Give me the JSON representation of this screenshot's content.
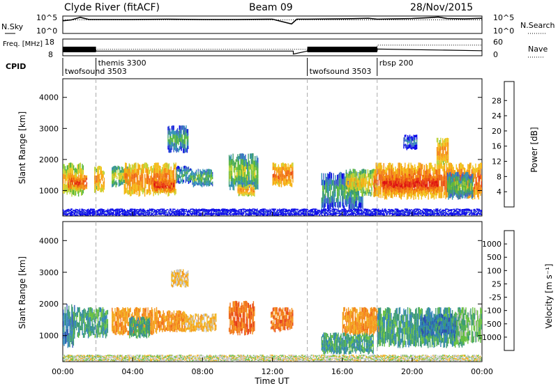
{
  "header": {
    "station": "Clyde River (fitACF)",
    "beam": "Beam 09",
    "date": "28/Nov/2015"
  },
  "chart_data": [
    {
      "type": "line",
      "panel": "noise",
      "left_label": "N.Sky",
      "right_label": "N.Search",
      "left_ticks": [
        "10^5",
        "10^0"
      ],
      "right_ticks": [
        "10^5",
        "10^0"
      ],
      "series": [
        {
          "name": "N.Sky",
          "style": "solid",
          "x": [
            0,
            0.5,
            1,
            1.5,
            2,
            4,
            6,
            8,
            10,
            12,
            13.1,
            13.4,
            14,
            16,
            17.5,
            18,
            19,
            20,
            21,
            21.5,
            22,
            23,
            24
          ],
          "y": [
            4,
            4.3,
            5.1,
            4.4,
            4.4,
            4.4,
            4.5,
            4.4,
            4.4,
            4.5,
            3,
            4.5,
            4.5,
            4.6,
            4.8,
            4.5,
            4.6,
            4.7,
            5.0,
            5.2,
            4.7,
            4.6,
            4.8
          ]
        },
        {
          "name": "N.Search",
          "style": "dotted",
          "x": [
            0,
            6,
            12,
            18,
            24
          ],
          "y": [
            4.3,
            4.3,
            4.3,
            4.3,
            4.3
          ]
        }
      ],
      "xlim": [
        0,
        24
      ]
    },
    {
      "type": "line",
      "panel": "frequency",
      "left_label": "Freq. [MHz]",
      "right_label": "Nave",
      "left_ticks": [
        "18",
        "8"
      ],
      "right_ticks": [
        "60",
        "0"
      ],
      "series": [
        {
          "name": "Freq.",
          "style": "solid",
          "x": [
            0,
            1.9,
            1.9,
            13.2,
            13.2,
            14,
            14,
            18,
            18,
            24
          ],
          "y": [
            11,
            11,
            10.8,
            10.8,
            9,
            10.8,
            11,
            11,
            12,
            11
          ]
        },
        {
          "name": "Nave",
          "style": "dotted",
          "x": [
            0,
            1.9,
            1.9,
            18,
            18,
            24
          ],
          "y": [
            20,
            20,
            23,
            23,
            38,
            38
          ]
        }
      ],
      "ylim": [
        8,
        18
      ]
    },
    {
      "type": "table",
      "panel": "cpid",
      "label": "CPID",
      "segments": [
        {
          "name": "twofsound 3503",
          "start": 0,
          "end": 1.9
        },
        {
          "name": "themis 3300",
          "start": 1.9,
          "end": 14
        },
        {
          "name": "twofsound 3503",
          "start": 14,
          "end": 18
        },
        {
          "name": "rbsp 200",
          "start": 18,
          "end": 24
        }
      ]
    },
    {
      "type": "heatmap",
      "panel": "power",
      "ylabel": "Slant Range [km]",
      "y_ticks": [
        1000,
        2000,
        3000,
        4000
      ],
      "ylim": [
        180,
        4600
      ],
      "colorbar": {
        "label": "Power [dB]",
        "ticks": [
          4,
          8,
          12,
          16,
          20,
          24,
          28
        ],
        "range": [
          0,
          33
        ]
      },
      "palette": [
        "#0000e8",
        "#3b5cc8",
        "#2e8fb6",
        "#3a9a73",
        "#58b83a",
        "#b9d335",
        "#f0c41a",
        "#f7a80e",
        "#f48a12",
        "#ef6812",
        "#e83a14",
        "#dd1010"
      ],
      "blobs": [
        {
          "t0": 0.0,
          "t1": 1.2,
          "r0": 800,
          "r1": 1900,
          "level": 22
        },
        {
          "t0": 0.3,
          "t1": 1.4,
          "r0": 1000,
          "r1": 1500,
          "level": 30
        },
        {
          "t0": 1.8,
          "t1": 2.4,
          "r0": 900,
          "r1": 1800,
          "level": 24
        },
        {
          "t0": 2.8,
          "t1": 3.9,
          "r0": 1100,
          "r1": 1800,
          "level": 18
        },
        {
          "t0": 3.5,
          "t1": 6.5,
          "r0": 800,
          "r1": 1900,
          "level": 26
        },
        {
          "t0": 5.2,
          "t1": 6.4,
          "r0": 900,
          "r1": 1400,
          "level": 31
        },
        {
          "t0": 6.5,
          "t1": 7.4,
          "r0": 1200,
          "r1": 1800,
          "level": 12
        },
        {
          "t0": 7.4,
          "t1": 8.6,
          "r0": 1100,
          "r1": 1700,
          "level": 14
        },
        {
          "t0": 6.0,
          "t1": 7.2,
          "r0": 2200,
          "r1": 3100,
          "level": 12
        },
        {
          "t0": 9.5,
          "t1": 11.2,
          "r0": 1000,
          "r1": 2200,
          "level": 16
        },
        {
          "t0": 10.0,
          "t1": 11.0,
          "r0": 800,
          "r1": 1200,
          "level": 24
        },
        {
          "t0": 12.0,
          "t1": 13.2,
          "r0": 1100,
          "r1": 1900,
          "level": 27
        },
        {
          "t0": 14.8,
          "t1": 17.2,
          "r0": 300,
          "r1": 1600,
          "level": 12
        },
        {
          "t0": 16.2,
          "t1": 18.0,
          "r0": 800,
          "r1": 1700,
          "level": 20
        },
        {
          "t0": 17.8,
          "t1": 24.0,
          "r0": 700,
          "r1": 1900,
          "level": 28
        },
        {
          "t0": 18.3,
          "t1": 21.5,
          "r0": 900,
          "r1": 1500,
          "level": 32
        },
        {
          "t0": 19.5,
          "t1": 20.3,
          "r0": 2300,
          "r1": 2800,
          "level": 8
        },
        {
          "t0": 21.4,
          "t1": 22.1,
          "r0": 1800,
          "r1": 2700,
          "level": 25
        },
        {
          "t0": 22.0,
          "t1": 23.5,
          "r0": 700,
          "r1": 1600,
          "level": 14
        },
        {
          "t0": 0.0,
          "t1": 24.0,
          "r0": 180,
          "r1": 420,
          "level": 4
        }
      ]
    },
    {
      "type": "heatmap",
      "panel": "velocity",
      "ylabel": "Slant Range [km]",
      "xlabel": "Time UT",
      "x_ticks": [
        "00:00",
        "04:00",
        "08:00",
        "12:00",
        "16:00",
        "20:00",
        "00:00"
      ],
      "y_ticks": [
        1000,
        2000,
        3000,
        4000
      ],
      "ylim": [
        180,
        4600
      ],
      "colorbar": {
        "label": "Velocity [m s⁻¹]",
        "ticks": [
          "1000",
          "500",
          "100",
          "25",
          "-25",
          "-100",
          "-500",
          "-1000"
        ]
      },
      "palette": [
        "#2a4fb0",
        "#2f82b5",
        "#3a9a73",
        "#66c03c",
        "#c8c8c8",
        "#f2b21c",
        "#f5951a",
        "#f07016",
        "#e63c14",
        "#dc1010"
      ],
      "blobs": [
        {
          "t0": 0.0,
          "t1": 0.7,
          "r0": 600,
          "r1": 2000,
          "level": 1
        },
        {
          "t0": 0.6,
          "t1": 2.6,
          "r0": 900,
          "r1": 1900,
          "level": 2
        },
        {
          "t0": 2.8,
          "t1": 5.4,
          "r0": 1000,
          "r1": 1900,
          "level": 6
        },
        {
          "t0": 3.8,
          "t1": 5.0,
          "r0": 900,
          "r1": 1600,
          "level": 2
        },
        {
          "t0": 5.4,
          "t1": 7.0,
          "r0": 1100,
          "r1": 1800,
          "level": 6
        },
        {
          "t0": 7.0,
          "t1": 8.8,
          "r0": 1100,
          "r1": 1700,
          "level": 5
        },
        {
          "t0": 6.2,
          "t1": 7.2,
          "r0": 2500,
          "r1": 3100,
          "level": 5
        },
        {
          "t0": 9.5,
          "t1": 11.0,
          "r0": 1000,
          "r1": 2100,
          "level": 7
        },
        {
          "t0": 11.9,
          "t1": 13.2,
          "r0": 1100,
          "r1": 1900,
          "level": 7
        },
        {
          "t0": 14.8,
          "t1": 17.8,
          "r0": 400,
          "r1": 1100,
          "level": 2
        },
        {
          "t0": 16.0,
          "t1": 18.2,
          "r0": 1000,
          "r1": 1900,
          "level": 6
        },
        {
          "t0": 18.0,
          "t1": 23.0,
          "r0": 600,
          "r1": 1900,
          "level": 2
        },
        {
          "t0": 20.5,
          "t1": 22.5,
          "r0": 900,
          "r1": 1700,
          "level": 1
        },
        {
          "t0": 22.5,
          "t1": 24.0,
          "r0": 700,
          "r1": 1900,
          "level": 3
        },
        {
          "t0": 0.0,
          "t1": 24.0,
          "r0": 180,
          "r1": 400,
          "level": 4
        }
      ]
    }
  ]
}
